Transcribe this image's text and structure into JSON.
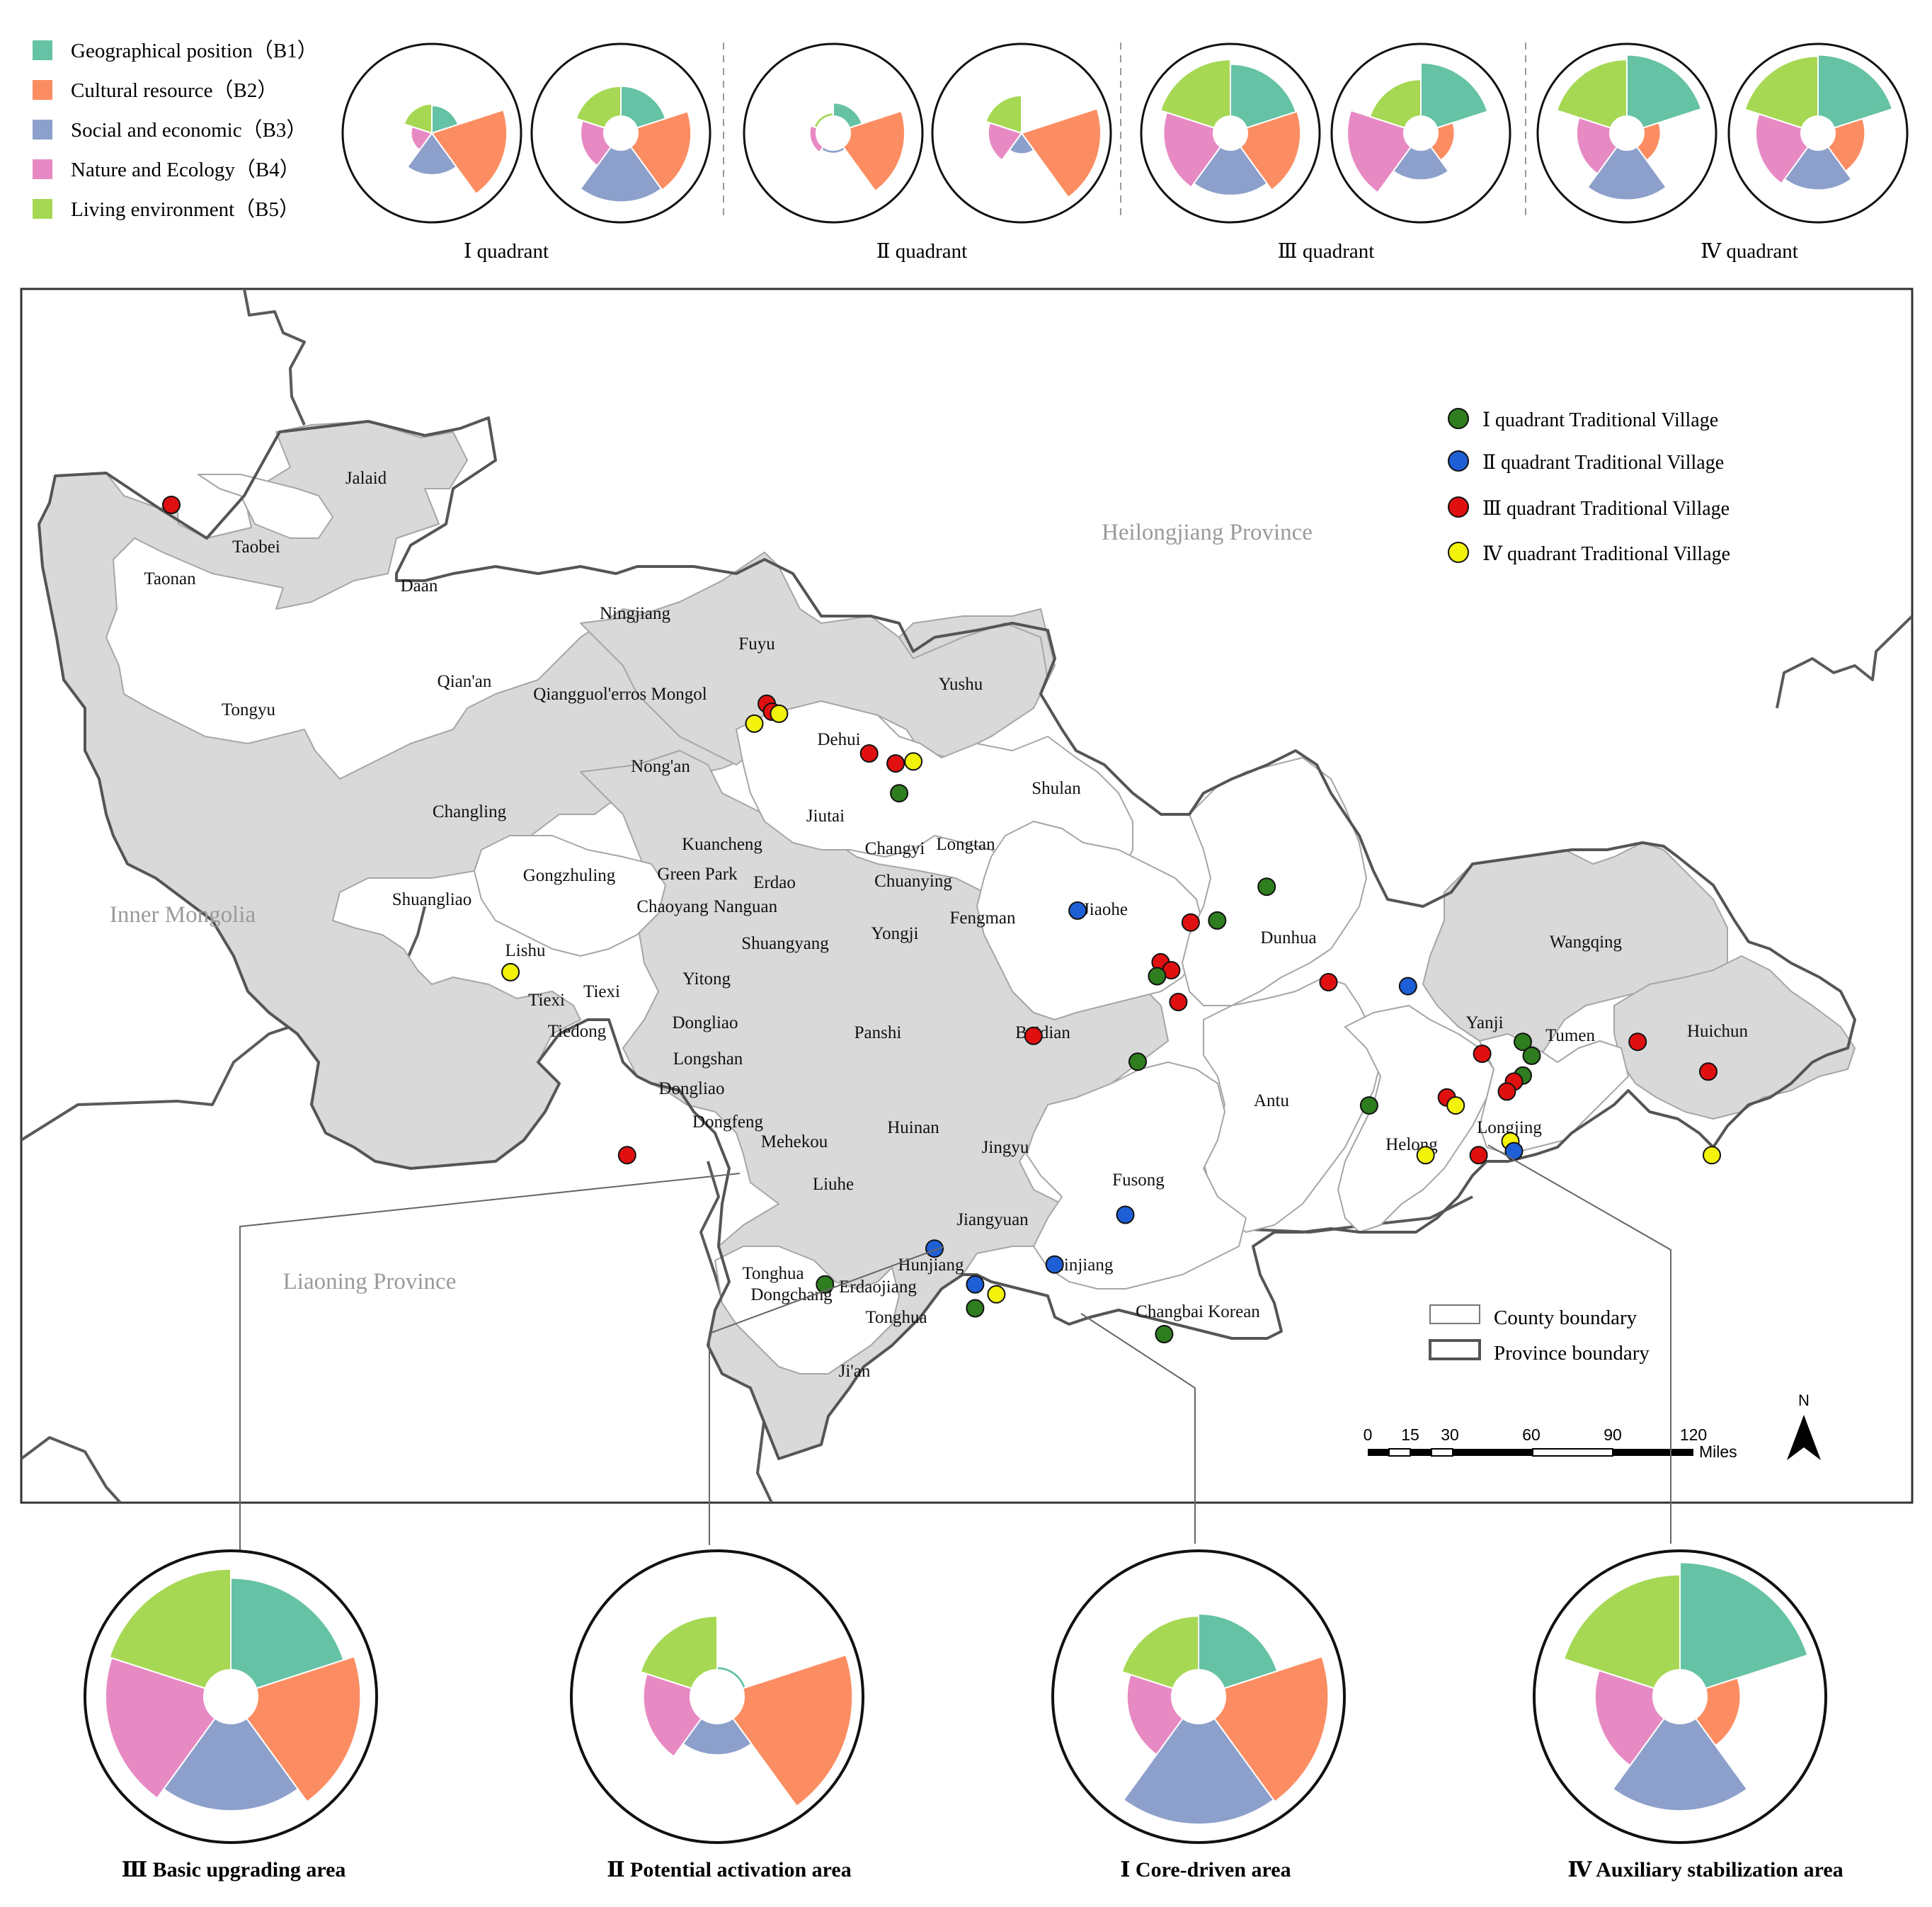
{
  "colors": {
    "B1": "#66c2a5",
    "B2": "#fc8d62",
    "B3": "#8da0cb",
    "B4": "#e78ac3",
    "B5": "#a6d854",
    "county_fill": "#d9d9d9",
    "county_line": "#a0a0a0",
    "province_line": "#555555",
    "q1": "#2e7d1f",
    "q2": "#1f5fd6",
    "q3": "#e01010",
    "q4": "#f2f20a"
  },
  "legend_top": [
    {
      "key": "B1",
      "label": "Geographical position（B1）"
    },
    {
      "key": "B2",
      "label": "Cultural resource（B2）"
    },
    {
      "key": "B3",
      "label": "Social and economic（B3）"
    },
    {
      "key": "B4",
      "label": "Nature and Ecology（B4）"
    },
    {
      "key": "B5",
      "label": "Living environment（B5）"
    }
  ],
  "quadrant_labels": [
    "Ⅰ quadrant",
    "Ⅱ quadrant",
    "Ⅲ quadrant",
    "Ⅳ quadrant"
  ],
  "quadrant_values": {
    "Q1a": [
      0.33,
      0.9,
      0.5,
      0.25,
      0.35
    ],
    "Q1b": [
      0.45,
      0.8,
      0.78,
      0.35,
      0.45
    ],
    "Q2a": [
      0.2,
      0.82,
      0.05,
      0.1,
      0.05
    ],
    "Q2b": [
      0.02,
      0.95,
      0.25,
      0.4,
      0.45
    ],
    "Q3a": [
      0.78,
      0.8,
      0.68,
      0.75,
      0.85
    ],
    "Q3b": [
      0.8,
      0.25,
      0.45,
      0.85,
      0.55
    ],
    "Q4a": [
      0.92,
      0.25,
      0.75,
      0.5,
      0.85
    ],
    "Q4b": [
      0.92,
      0.45,
      0.6,
      0.68,
      0.9
    ]
  },
  "zoom_values": {
    "Z3": [
      0.82,
      0.92,
      0.78,
      0.88,
      0.9
    ],
    "Z2": [
      0.03,
      0.97,
      0.28,
      0.42,
      0.48
    ],
    "Z1": [
      0.5,
      0.92,
      0.9,
      0.4,
      0.48
    ],
    "Z4": [
      0.96,
      0.3,
      0.78,
      0.52,
      0.85
    ]
  },
  "zoom_titles": [
    "Ⅲ Basic upgrading area",
    "Ⅱ Potential activation area",
    "Ⅰ Core-driven area",
    "Ⅳ Auxiliary stabilization area"
  ],
  "region_labels": {
    "heilongjiang": "Heilongjiang Province",
    "inner_mongolia": "Inner Mongolia",
    "liaoning": "Liaoning Province"
  },
  "county_labels": [
    "Jalaid",
    "Taobei",
    "Taonan",
    "Daan",
    "Ningjiang",
    "Fuyu",
    "Qian'an",
    "Qiangguol'erros Mongol",
    "Tongyu",
    "Yushu",
    "Dehui",
    "Nong'an",
    "Shulan",
    "Changling",
    "Jiutai",
    "Kuancheng",
    "Changyi",
    "Longtan",
    "Gongzhuling",
    "Green Park",
    "Erdao",
    "Chuanying",
    "Shuangliao",
    "Chaoyang",
    "Nanguan",
    "Jiaohe",
    "Fengman",
    "Lishu",
    "Yongji",
    "Shuangyang",
    "Dunhua",
    "Wangqing",
    "Yitong",
    "Tiexi",
    "Tiexi",
    "Tiedong",
    "Dongliao",
    "Panshi",
    "Baidian",
    "Yanji",
    "Tumen",
    "Huichun",
    "Longshan",
    "Dongliao",
    "Antu",
    "Dongfeng",
    "Helong",
    "Longjing",
    "Mehekou",
    "Huinan",
    "Jingyu",
    "Fusong",
    "Liuhe",
    "Jiangyuan",
    "Tonghua",
    "Hunjiang",
    "Linjiang",
    "Dongchang",
    "Erdaojiang",
    "Tonghua",
    "Changbai Korean",
    "Ji'an"
  ],
  "map_legend": [
    {
      "key": "q1",
      "label": "Ⅰ quadrant Traditional Village"
    },
    {
      "key": "q2",
      "label": "Ⅱ quadrant Traditional Village"
    },
    {
      "key": "q3",
      "label": "Ⅲ quadrant Traditional Village"
    },
    {
      "key": "q4",
      "label": "Ⅳ quadrant Traditional Village"
    }
  ],
  "boundary_legend": {
    "county": "County boundary",
    "province": "Province boundary"
  },
  "scale_bar": {
    "ticks": [
      "0",
      "15",
      "30",
      "60",
      "90",
      "120"
    ],
    "unit": "Miles"
  },
  "north_label": "N",
  "villages": [
    {
      "q": "q3",
      "lat": 45.72,
      "lon": 122.4
    },
    {
      "q": "q3",
      "lat": 44.72,
      "lon": 125.77
    },
    {
      "q": "q3",
      "lat": 44.68,
      "lon": 125.8
    },
    {
      "q": "q4",
      "lat": 44.62,
      "lon": 125.7
    },
    {
      "q": "q4",
      "lat": 44.67,
      "lon": 125.84
    },
    {
      "q": "q3",
      "lat": 44.47,
      "lon": 126.35
    },
    {
      "q": "q3",
      "lat": 44.42,
      "lon": 126.5
    },
    {
      "q": "q4",
      "lat": 44.43,
      "lon": 126.6
    },
    {
      "q": "q1",
      "lat": 44.27,
      "lon": 126.52
    },
    {
      "q": "q2",
      "lat": 43.68,
      "lon": 127.53
    },
    {
      "q": "q1",
      "lat": 43.8,
      "lon": 128.6
    },
    {
      "q": "q1",
      "lat": 43.63,
      "lon": 128.32
    },
    {
      "q": "q3",
      "lat": 43.62,
      "lon": 128.17
    },
    {
      "q": "q3",
      "lat": 43.42,
      "lon": 128.0
    },
    {
      "q": "q3",
      "lat": 43.38,
      "lon": 128.06
    },
    {
      "q": "q1",
      "lat": 43.35,
      "lon": 127.98
    },
    {
      "q": "q3",
      "lat": 43.22,
      "lon": 128.1
    },
    {
      "q": "q3",
      "lat": 43.32,
      "lon": 128.95
    },
    {
      "q": "q2",
      "lat": 43.3,
      "lon": 129.4
    },
    {
      "q": "q3",
      "lat": 43.05,
      "lon": 127.28
    },
    {
      "q": "q1",
      "lat": 42.92,
      "lon": 127.87
    },
    {
      "q": "q4",
      "lat": 43.37,
      "lon": 124.32
    },
    {
      "q": "q1",
      "lat": 43.02,
      "lon": 130.05
    },
    {
      "q": "q1",
      "lat": 42.95,
      "lon": 130.1
    },
    {
      "q": "q3",
      "lat": 42.96,
      "lon": 129.82
    },
    {
      "q": "q3",
      "lat": 43.02,
      "lon": 130.7
    },
    {
      "q": "q3",
      "lat": 42.87,
      "lon": 131.1
    },
    {
      "q": "q1",
      "lat": 42.85,
      "lon": 130.05
    },
    {
      "q": "q3",
      "lat": 42.82,
      "lon": 130.0
    },
    {
      "q": "q3",
      "lat": 42.77,
      "lon": 129.96
    },
    {
      "q": "q1",
      "lat": 42.7,
      "lon": 129.18
    },
    {
      "q": "q3",
      "lat": 42.74,
      "lon": 129.62
    },
    {
      "q": "q4",
      "lat": 42.7,
      "lon": 129.67
    },
    {
      "q": "q4",
      "lat": 42.52,
      "lon": 129.98
    },
    {
      "q": "q2",
      "lat": 42.47,
      "lon": 130.0
    },
    {
      "q": "q3",
      "lat": 42.45,
      "lon": 129.8
    },
    {
      "q": "q4",
      "lat": 42.45,
      "lon": 129.5
    },
    {
      "q": "q4",
      "lat": 42.45,
      "lon": 131.12
    },
    {
      "q": "q3",
      "lat": 42.45,
      "lon": 124.98
    },
    {
      "q": "q2",
      "lat": 41.98,
      "lon": 126.72
    },
    {
      "q": "q2",
      "lat": 42.15,
      "lon": 127.8
    },
    {
      "q": "q2",
      "lat": 41.9,
      "lon": 127.4
    },
    {
      "q": "q2",
      "lat": 41.8,
      "lon": 126.95
    },
    {
      "q": "q4",
      "lat": 41.75,
      "lon": 127.07
    },
    {
      "q": "q1",
      "lat": 41.68,
      "lon": 126.95
    },
    {
      "q": "q1",
      "lat": 41.8,
      "lon": 126.1
    },
    {
      "q": "q1",
      "lat": 41.55,
      "lon": 128.02
    }
  ]
}
